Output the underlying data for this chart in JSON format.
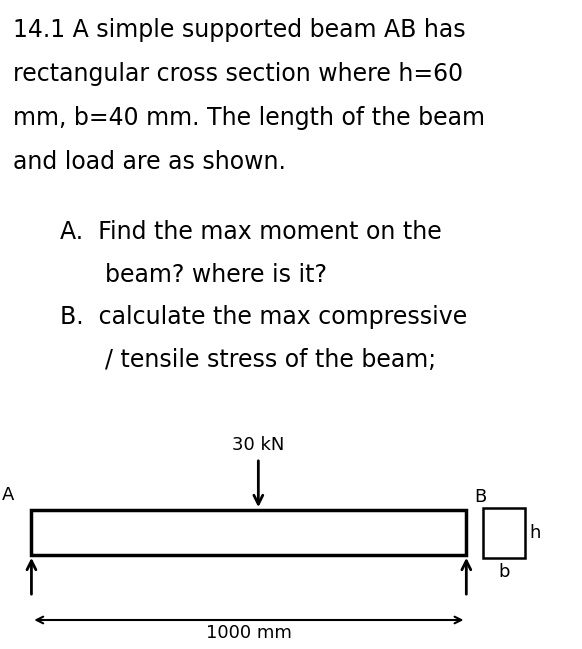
{
  "background_color": "#ffffff",
  "text_color": "#000000",
  "title_lines": [
    "14.1 A simple supported beam AB has",
    "rectangular cross section where h=60",
    "mm, b=40 mm. The length of the beam",
    "and load are as shown."
  ],
  "question_a_line1": "A.  Find the max moment on the",
  "question_a_line2": "      beam? where is it?",
  "question_b_line1": "B.  calculate the max compressive",
  "question_b_line2": "      / tensile stress of the beam;",
  "load_label": "30 kN",
  "length_label": "1000 mm",
  "label_A": "A",
  "label_B": "B",
  "label_h": "h",
  "label_b": "b",
  "font_size_main": 17,
  "font_size_diagram": 13
}
